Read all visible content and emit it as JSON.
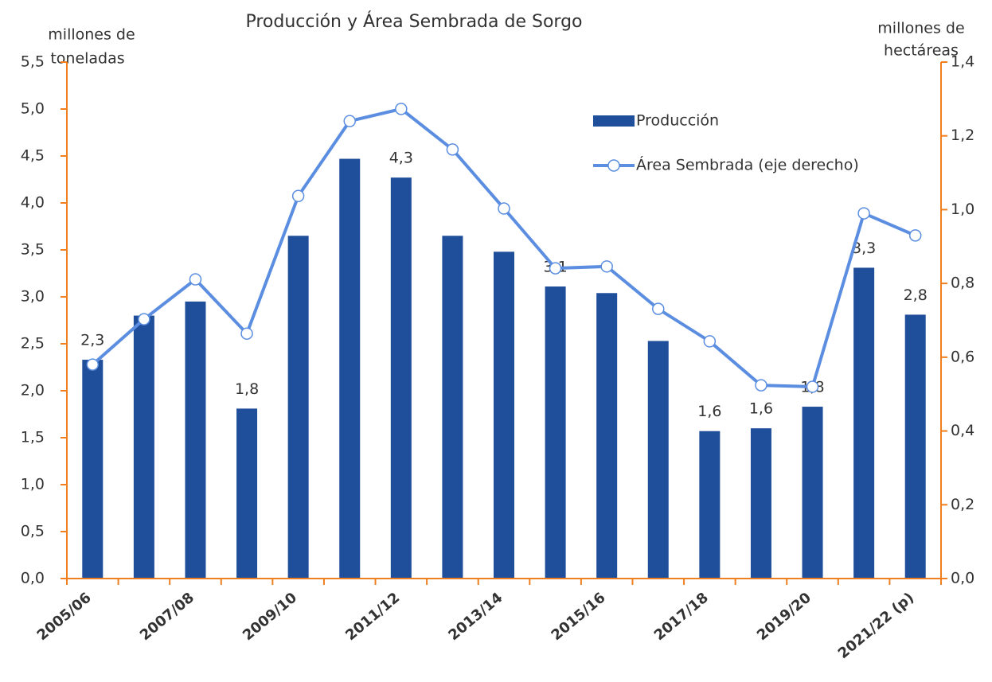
{
  "chart_data": {
    "type": "bar",
    "title": "Producción y Área Sembrada de Sorgo",
    "ylabel": [
      "millones de",
      "toneladas"
    ],
    "y2label": [
      "millones de",
      "hectáreas"
    ],
    "categories": [
      "2005/06",
      null,
      "2007/08",
      null,
      "2009/10",
      null,
      "2011/12",
      null,
      "2013/14",
      null,
      "2015/16",
      null,
      "2017/18",
      null,
      "2019/20",
      null,
      "2021/22 (p)"
    ],
    "series": [
      {
        "name": "Producción",
        "type": "bar",
        "color": "#1f4e9a",
        "values": [
          2.33,
          2.8,
          2.95,
          1.81,
          3.65,
          4.47,
          4.27,
          3.65,
          3.48,
          3.11,
          3.04,
          2.53,
          1.57,
          1.6,
          1.83,
          3.31,
          2.81
        ],
        "value_labels": [
          "2,3",
          null,
          null,
          "1,8",
          null,
          null,
          "4,3",
          null,
          null,
          "3,1",
          null,
          null,
          "1,6",
          "1,6",
          "1,8",
          "3,3",
          "2,8"
        ]
      },
      {
        "name": "Área Sembrada (eje derecho)",
        "type": "line",
        "axis": "y2",
        "color": "#5b8ee0",
        "values": [
          0.58,
          0.703,
          0.811,
          0.664,
          1.037,
          1.24,
          1.273,
          1.163,
          1.003,
          0.841,
          0.846,
          0.731,
          0.643,
          0.524,
          0.52,
          0.99,
          0.93
        ]
      }
    ],
    "ylim": [
      0,
      5.5
    ],
    "yticks": [
      {
        "value": 0,
        "label": "0,0"
      },
      {
        "value": 0.5,
        "label": "0,5"
      },
      {
        "value": 1,
        "label": "1,0"
      },
      {
        "value": 1.5,
        "label": "1,5"
      },
      {
        "value": 2,
        "label": "2,0"
      },
      {
        "value": 2.5,
        "label": "2,5"
      },
      {
        "value": 3,
        "label": "3,0"
      },
      {
        "value": 3.5,
        "label": "3,5"
      },
      {
        "value": 4,
        "label": "4,0"
      },
      {
        "value": 4.5,
        "label": "4,5"
      },
      {
        "value": 5,
        "label": "5,0"
      },
      {
        "value": 5.5,
        "label": "5,5"
      }
    ],
    "y2lim": [
      0,
      1.4
    ],
    "y2ticks": [
      {
        "value": 0,
        "label": "0,0"
      },
      {
        "value": 0.2,
        "label": "0,2"
      },
      {
        "value": 0.4,
        "label": "0,4"
      },
      {
        "value": 0.6,
        "label": "0,6"
      },
      {
        "value": 0.8,
        "label": "0,8"
      },
      {
        "value": 1,
        "label": "1,0"
      },
      {
        "value": 1.2,
        "label": "1,2"
      },
      {
        "value": 1.4,
        "label": "1,4"
      }
    ],
    "axis_color": "#f07f20",
    "grid": false
  }
}
